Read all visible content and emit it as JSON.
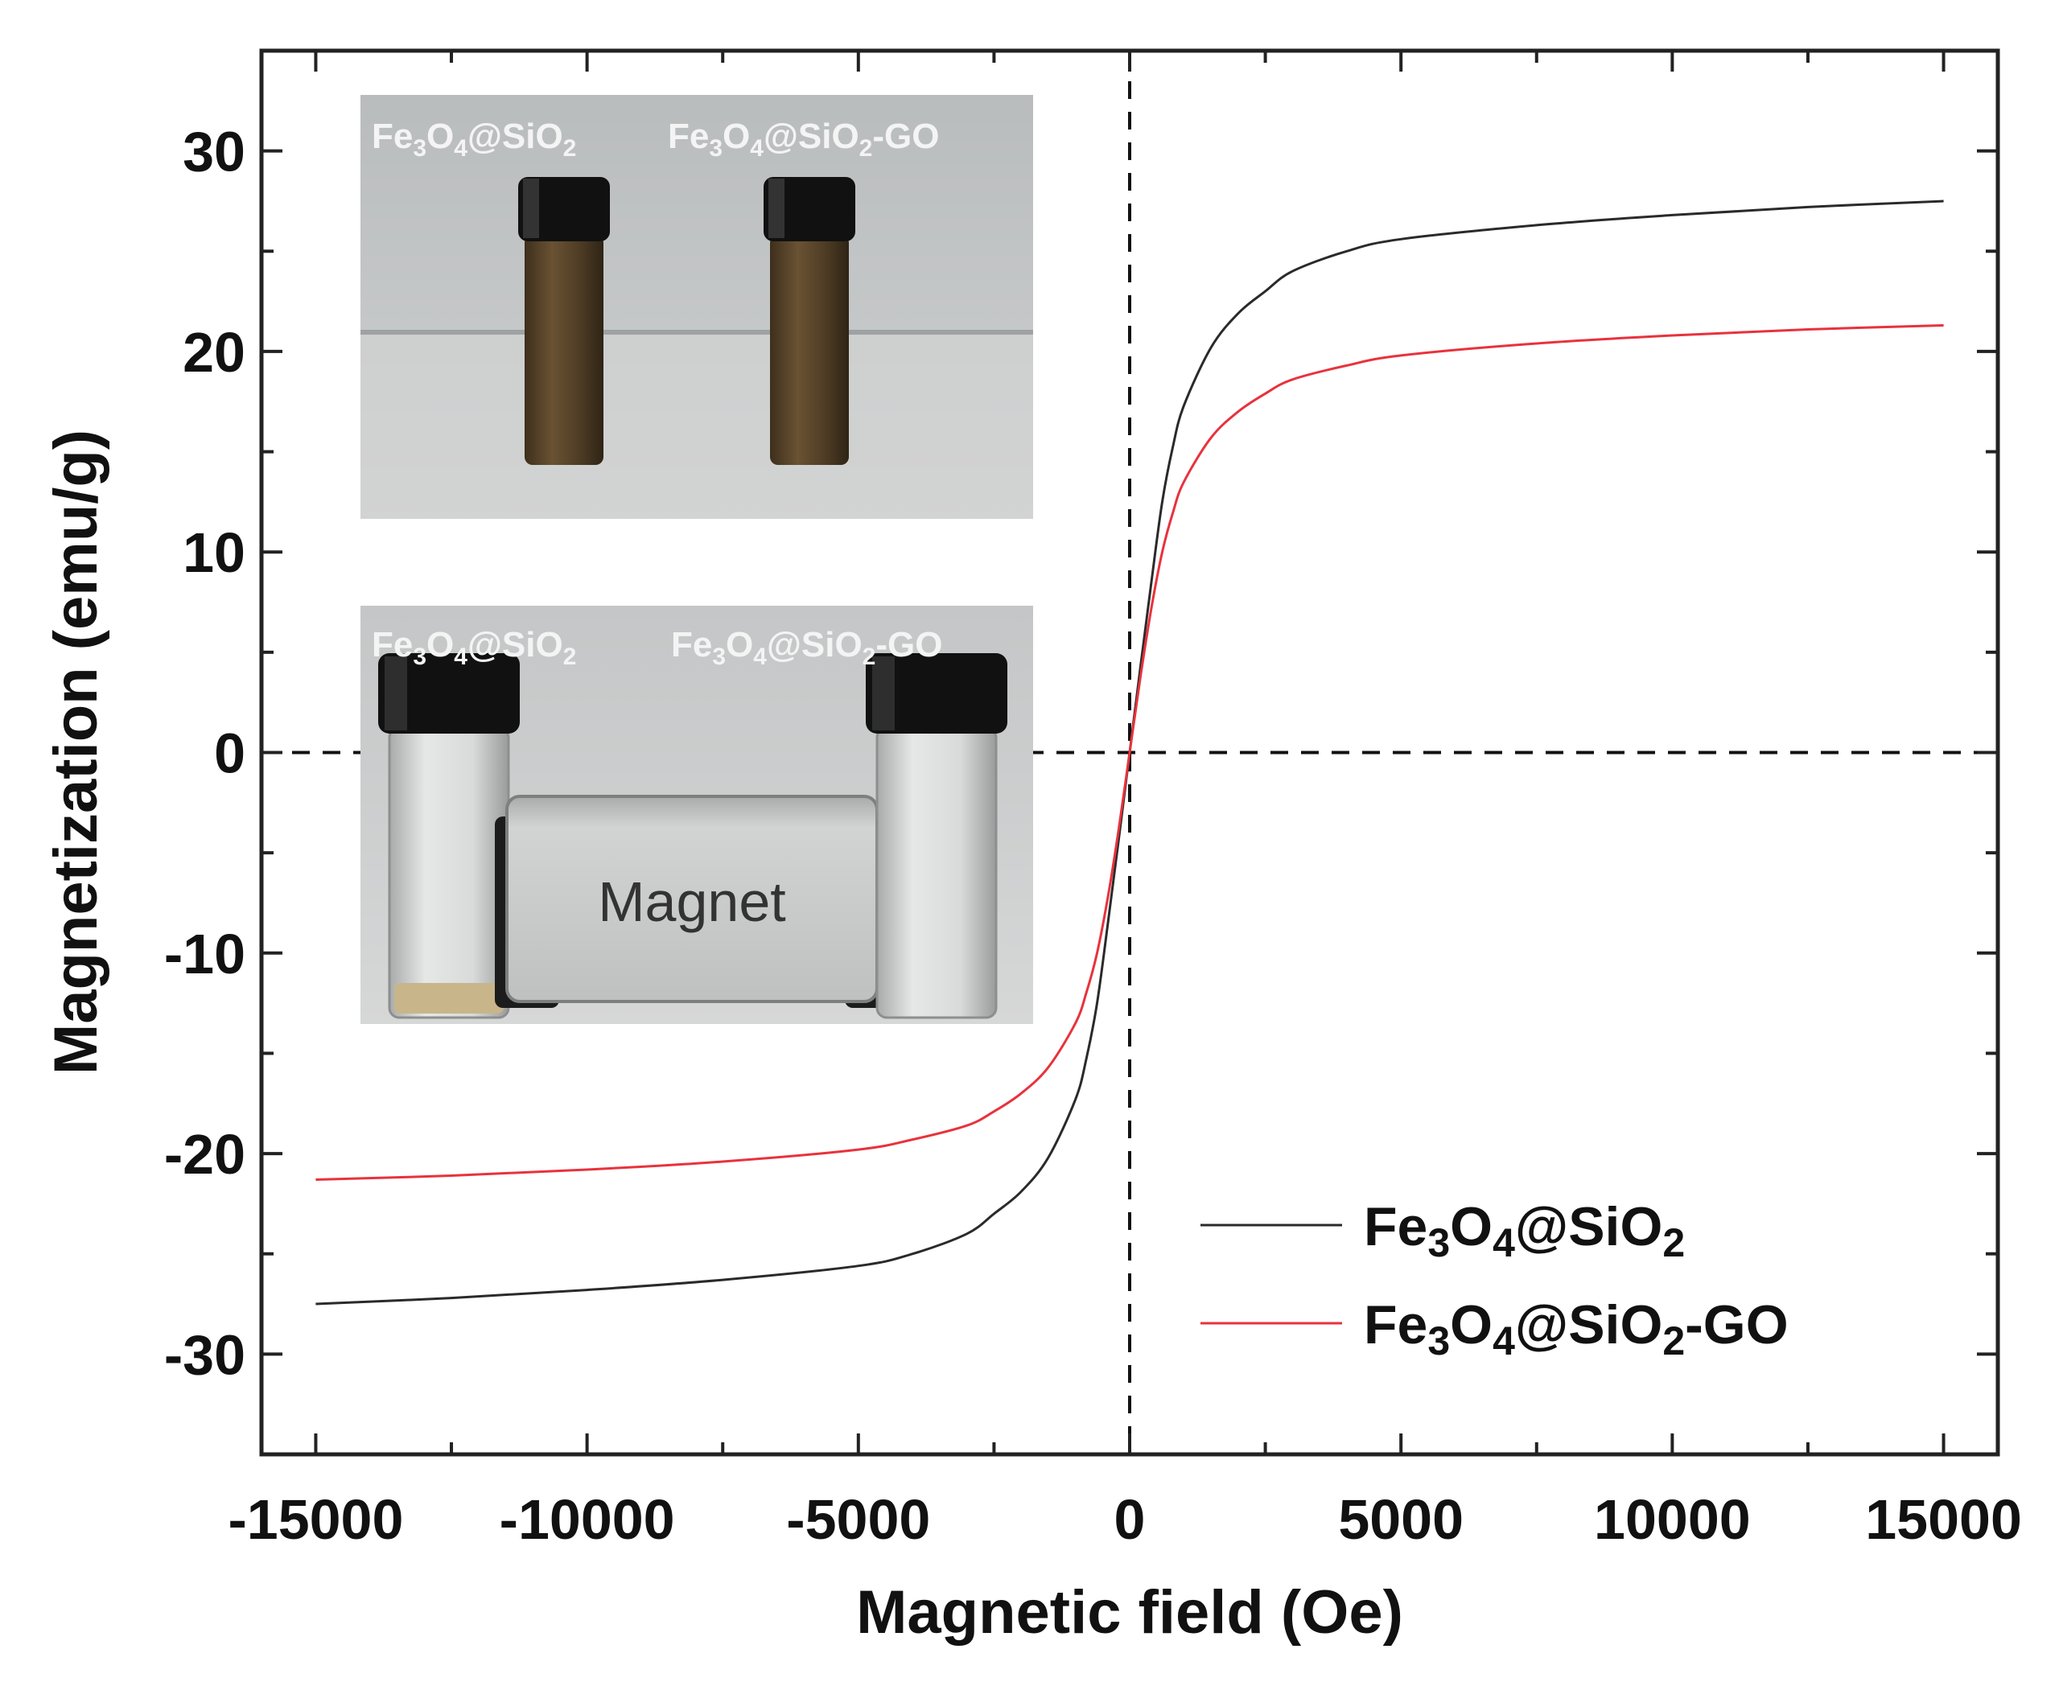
{
  "chart_data": {
    "type": "line",
    "xlabel": "Magnetic field (Oe)",
    "ylabel": "Magnetization (emu/g)",
    "xlim": [
      -16000,
      16000
    ],
    "ylim": [
      -35,
      35
    ],
    "xticks": [
      -15000,
      -10000,
      -5000,
      0,
      5000,
      10000,
      15000
    ],
    "xtick_labels": [
      "-15000",
      "-10000",
      "-5000",
      "0",
      "5000",
      "10000",
      "15000"
    ],
    "yticks": [
      -30,
      -20,
      -10,
      0,
      10,
      20,
      30
    ],
    "ytick_labels": [
      "-30",
      "-20",
      "-10",
      "0",
      "10",
      "20",
      "30"
    ],
    "reference_lines": [
      {
        "axis": "x",
        "value": 0,
        "style": "dashed"
      },
      {
        "axis": "y",
        "value": 0,
        "style": "dashed"
      }
    ],
    "grid": false,
    "legend_position": "bottom-right",
    "series": [
      {
        "name": "Fe3O4@SiO2",
        "name_parts": [
          "Fe",
          "3",
          "O",
          "4",
          "@SiO",
          "2",
          ""
        ],
        "color": "#2a2a2a",
        "x": [
          -15000,
          -12500,
          -10000,
          -7500,
          -5000,
          -4000,
          -3000,
          -2500,
          -2000,
          -1500,
          -1000,
          -800,
          -600,
          -400,
          -200,
          0,
          200,
          400,
          600,
          800,
          1000,
          1500,
          2000,
          2500,
          3000,
          4000,
          5000,
          7500,
          10000,
          12500,
          15000
        ],
        "y": [
          -27.5,
          -27.2,
          -26.8,
          -26.3,
          -25.6,
          -25.0,
          -24.0,
          -23.0,
          -21.9,
          -20.2,
          -17.3,
          -15.3,
          -12.5,
          -8.5,
          -4.3,
          0,
          4.3,
          8.5,
          12.5,
          15.3,
          17.3,
          20.2,
          21.9,
          23.0,
          24.0,
          25.0,
          25.6,
          26.3,
          26.8,
          27.2,
          27.5
        ]
      },
      {
        "name": "Fe3O4@SiO2-GO",
        "name_parts": [
          "Fe",
          "3",
          "O",
          "4",
          "@SiO",
          "2",
          "-GO"
        ],
        "color": "#e8323c",
        "x": [
          -15000,
          -12500,
          -10000,
          -7500,
          -5000,
          -4000,
          -3000,
          -2500,
          -2000,
          -1500,
          -1000,
          -800,
          -600,
          -400,
          -200,
          0,
          200,
          400,
          600,
          800,
          1000,
          1500,
          2000,
          2500,
          3000,
          4000,
          5000,
          7500,
          10000,
          12500,
          15000
        ],
        "y": [
          -21.3,
          -21.1,
          -20.8,
          -20.4,
          -19.8,
          -19.3,
          -18.6,
          -17.9,
          -17.0,
          -15.7,
          -13.5,
          -12.0,
          -10.0,
          -7.2,
          -3.8,
          0,
          3.8,
          7.2,
          10.0,
          12.0,
          13.5,
          15.7,
          17.0,
          17.9,
          18.6,
          19.3,
          19.8,
          20.4,
          20.8,
          21.1,
          21.3
        ]
      }
    ]
  },
  "insets": {
    "top_photo": {
      "label_left": {
        "a": "Fe",
        "b": "3",
        "c": "O",
        "d": "4",
        "e": "@SiO",
        "f": "2"
      },
      "label_right": {
        "a": "Fe",
        "b": "3",
        "c": "O",
        "d": "4",
        "e": "@SiO",
        "f": "2",
        "g": "-GO"
      }
    },
    "bottom_photo": {
      "label_left": {
        "a": "Fe",
        "b": "3",
        "c": "O",
        "d": "4",
        "e": "@SiO",
        "f": "2"
      },
      "label_right": {
        "a": "Fe",
        "b": "3",
        "c": "O",
        "d": "4",
        "e": "@SiO",
        "f": "2",
        "g": "-GO"
      },
      "magnet_label": "Magnet"
    }
  }
}
